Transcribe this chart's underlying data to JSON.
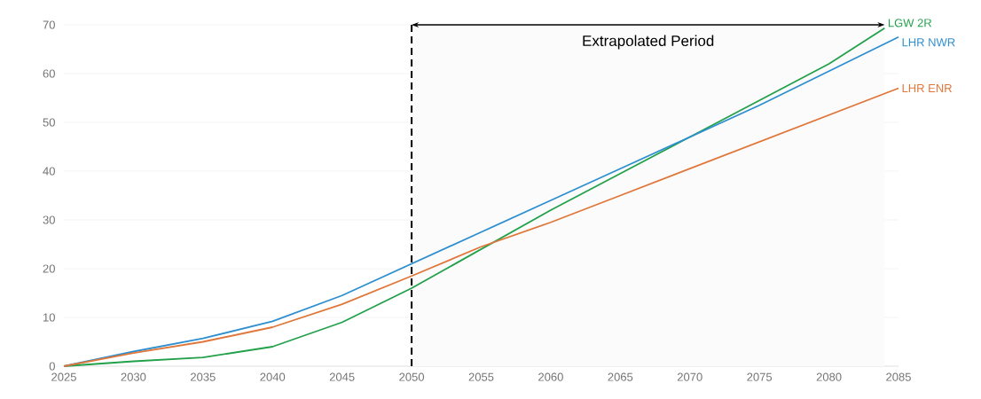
{
  "chart_data": {
    "type": "line",
    "x": [
      2025,
      2030,
      2035,
      2040,
      2045,
      2050,
      2055,
      2060,
      2065,
      2070,
      2075,
      2080,
      2085
    ],
    "series": [
      {
        "name": "LGW 2R",
        "color": "#22a04a",
        "x": [
          2025,
          2030,
          2035,
          2040,
          2045,
          2050,
          2055,
          2060,
          2065,
          2070,
          2075,
          2080,
          2084
        ],
        "values": [
          0,
          1,
          1.8,
          4,
          9,
          16,
          24,
          32,
          39.5,
          47,
          54.5,
          62,
          69.3
        ]
      },
      {
        "name": "LHR NWR",
        "color": "#2e8fd0",
        "values": [
          0,
          3,
          5.7,
          9.2,
          14.5,
          21,
          27.5,
          34,
          40.5,
          47,
          53.5,
          60.5,
          67.5
        ]
      },
      {
        "name": "LHR ENR",
        "color": "#e0773a",
        "values": [
          0,
          2.7,
          5,
          8,
          12.7,
          18.5,
          24.5,
          29.5,
          35,
          40.5,
          46,
          51.5,
          57
        ]
      }
    ],
    "xlim": [
      2025,
      2085
    ],
    "xticks": [
      2025,
      2030,
      2035,
      2040,
      2045,
      2050,
      2055,
      2060,
      2065,
      2070,
      2075,
      2080,
      2085
    ],
    "ylim": [
      0,
      70
    ],
    "yticks": [
      0,
      10,
      20,
      30,
      40,
      50,
      60,
      70
    ],
    "ref_lines": [
      {
        "axis": "x",
        "value": 2050,
        "color": "#000000",
        "line_style": "dashed"
      }
    ],
    "bands": [
      {
        "axis": "x",
        "from": 2050,
        "to": 2084,
        "label": "Extrapolated Period",
        "color": "#fbfbfb"
      }
    ],
    "grid": "y",
    "marker": "none",
    "line_style": "solid"
  }
}
